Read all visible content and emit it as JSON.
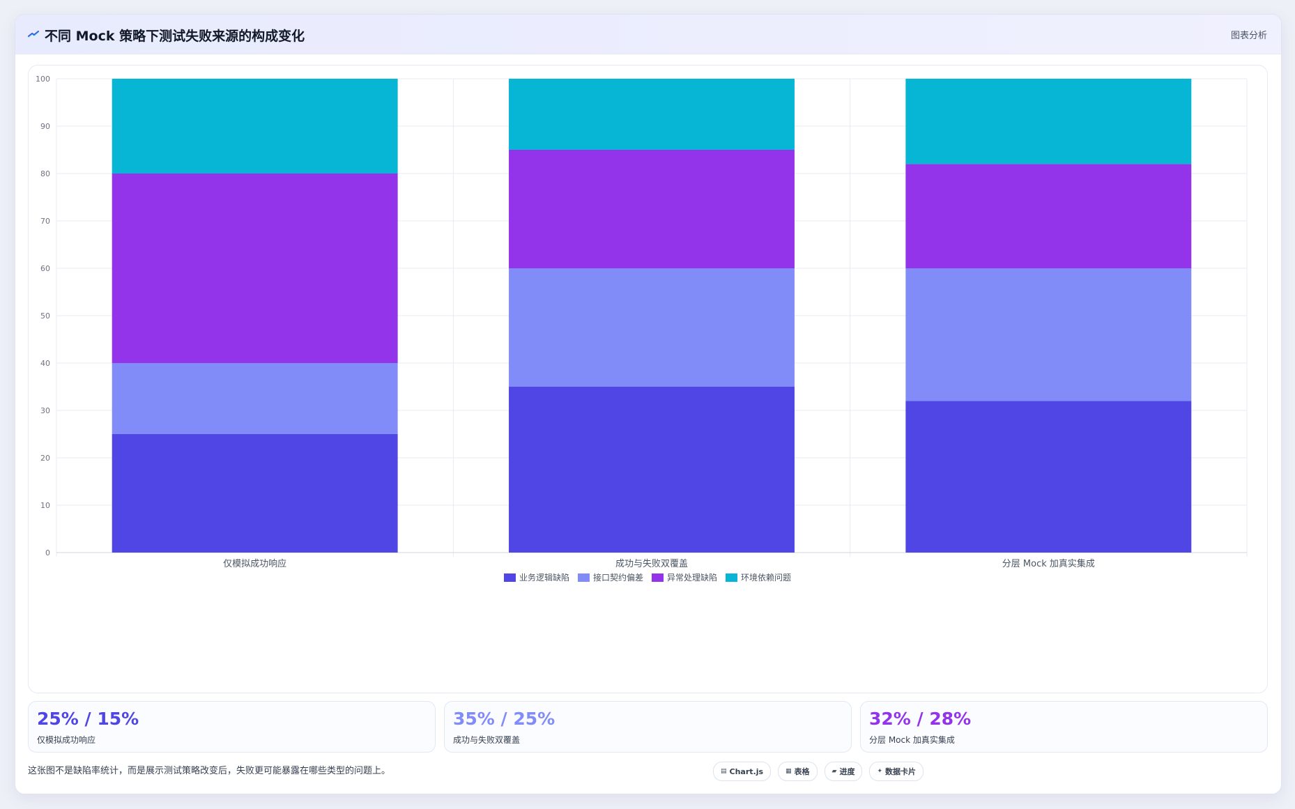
{
  "header": {
    "title": "不同 Mock 策略下测试失败来源的构成变化",
    "tag": "图表分析",
    "icon": "chart-trend-icon"
  },
  "chart_data": {
    "type": "bar",
    "stacked": true,
    "categories": [
      "仅模拟成功响应",
      "成功与失败双覆盖",
      "分层 Mock 加真实集成"
    ],
    "series": [
      {
        "name": "业务逻辑缺陷",
        "color": "#4f46e5",
        "values": [
          25,
          35,
          32
        ]
      },
      {
        "name": "接口契约偏差",
        "color": "#818cf8",
        "values": [
          15,
          25,
          28
        ]
      },
      {
        "name": "异常处理缺陷",
        "color": "#9333ea",
        "values": [
          40,
          25,
          22
        ]
      },
      {
        "name": "环境依赖问题",
        "color": "#06b6d4",
        "values": [
          20,
          15,
          18
        ]
      }
    ],
    "title": "",
    "xlabel": "",
    "ylabel": "",
    "ylim": [
      0,
      100
    ],
    "yticks": [
      0,
      10,
      20,
      30,
      40,
      50,
      60,
      70,
      80,
      90,
      100
    ],
    "grid": true,
    "legend": "bottom-center"
  },
  "stats": [
    {
      "value": "25% / 15%",
      "label": "仅模拟成功响应",
      "color": "#4f46e5"
    },
    {
      "value": "35% / 25%",
      "label": "成功与失败双覆盖",
      "color": "#818cf8"
    },
    {
      "value": "32% / 28%",
      "label": "分层 Mock 加真实集成",
      "color": "#9333ea"
    }
  ],
  "footer": {
    "note": "这张图不是缺陷率统计，而是展示测试策略改变后，失败更可能暴露在哪些类型的问题上。",
    "pills": [
      {
        "icon": "chart-icon",
        "glyph": "▤",
        "label": "Chart.js"
      },
      {
        "icon": "table-icon",
        "glyph": "▦",
        "label": "表格"
      },
      {
        "icon": "progress-icon",
        "glyph": "▰",
        "label": "进度"
      },
      {
        "icon": "card-icon",
        "glyph": "✦",
        "label": "数据卡片"
      }
    ]
  }
}
